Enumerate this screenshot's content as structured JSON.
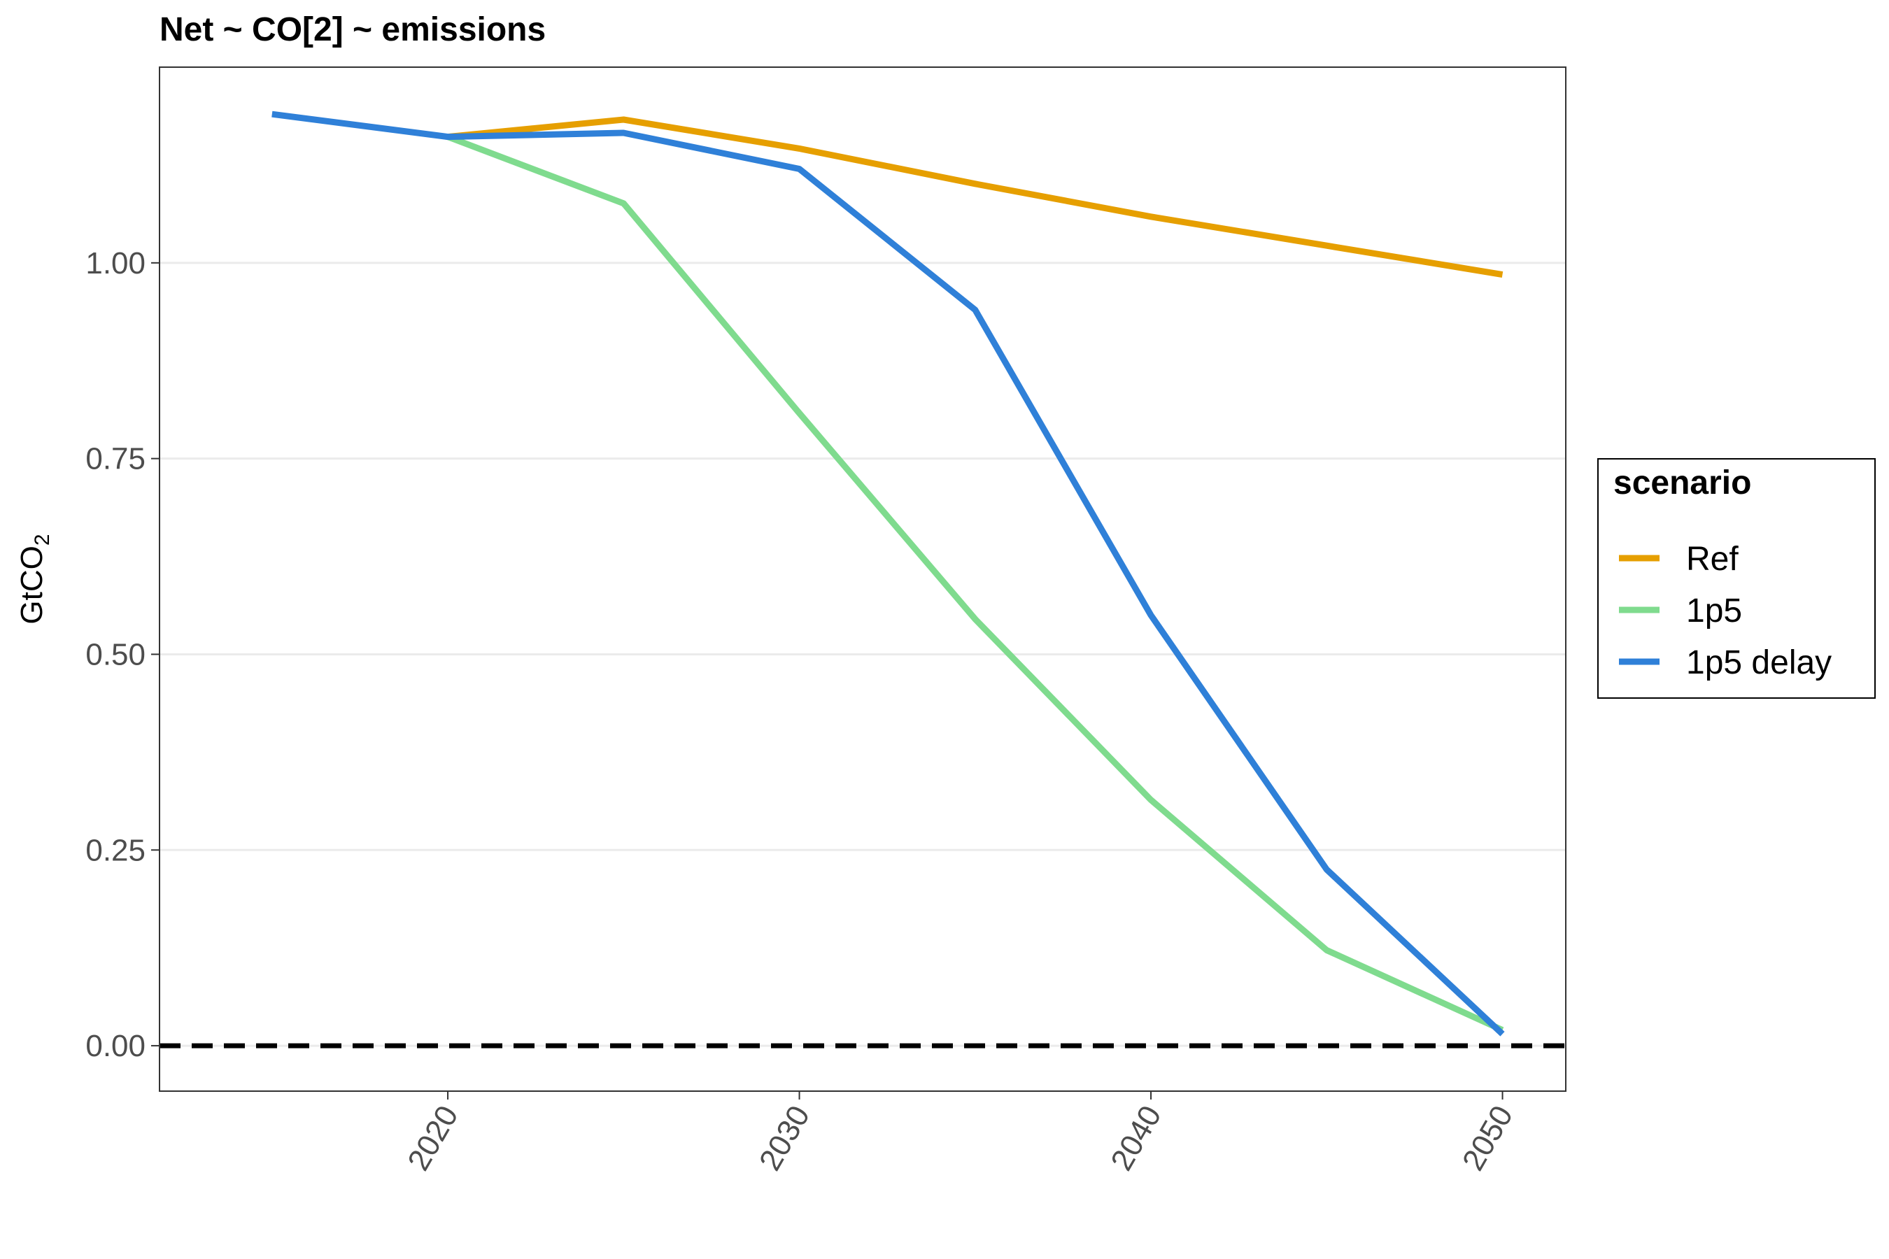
{
  "chart_data": {
    "type": "line",
    "title": "Net ~ CO[2] ~ emissions",
    "xlabel": "",
    "ylabel": "GtCO",
    "ylabel_subscript": "2",
    "x": [
      2015,
      2020,
      2025,
      2030,
      2035,
      2040,
      2045,
      2050
    ],
    "xticks": [
      "2020",
      "2030",
      "2040",
      "2050"
    ],
    "yticks": [
      "0.00",
      "0.25",
      "0.50",
      "0.75",
      "1.00"
    ],
    "xlim": [
      2011.8,
      2051.8
    ],
    "ylim": [
      -0.058,
      1.25
    ],
    "grid": "horizontal major",
    "reference_line": {
      "y": 0,
      "style": "dashed",
      "color": "#000000"
    },
    "legend": {
      "title": "scenario",
      "position": "right"
    },
    "series": [
      {
        "name": "Ref",
        "color": "#E69F00",
        "x": [
          2020,
          2025,
          2030,
          2035,
          2040,
          2045,
          2050
        ],
        "values": [
          1.161,
          1.183,
          1.146,
          1.101,
          1.059,
          1.022,
          0.985
        ]
      },
      {
        "name": "1p5",
        "color": "#7FDB8E",
        "x": [
          2020,
          2025,
          2030,
          2035,
          2040,
          2045,
          2050
        ],
        "values": [
          1.161,
          1.076,
          0.808,
          0.545,
          0.314,
          0.122,
          0.02
        ]
      },
      {
        "name": "1p5 delay",
        "color": "#2F80D8",
        "x": [
          2015,
          2020,
          2025,
          2030,
          2035,
          2040,
          2045,
          2050
        ],
        "values": [
          1.19,
          1.161,
          1.166,
          1.12,
          0.94,
          0.55,
          0.225,
          0.015
        ]
      }
    ]
  }
}
